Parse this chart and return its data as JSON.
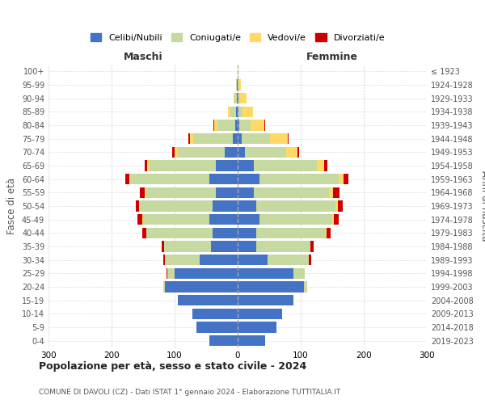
{
  "age_groups": [
    "0-4",
    "5-9",
    "10-14",
    "15-19",
    "20-24",
    "25-29",
    "30-34",
    "35-39",
    "40-44",
    "45-49",
    "50-54",
    "55-59",
    "60-64",
    "65-69",
    "70-74",
    "75-79",
    "80-84",
    "85-89",
    "90-94",
    "95-99",
    "100+"
  ],
  "birth_years": [
    "2019-2023",
    "2014-2018",
    "2009-2013",
    "2004-2008",
    "1999-2003",
    "1994-1998",
    "1989-1993",
    "1984-1988",
    "1979-1983",
    "1974-1978",
    "1969-1973",
    "1964-1968",
    "1959-1963",
    "1954-1958",
    "1949-1953",
    "1944-1948",
    "1939-1943",
    "1934-1938",
    "1929-1933",
    "1924-1928",
    "≤ 1923"
  ],
  "maschi": {
    "celibi": [
      45,
      65,
      72,
      95,
      115,
      100,
      60,
      42,
      40,
      45,
      40,
      35,
      45,
      35,
      20,
      8,
      4,
      2,
      1,
      1,
      0
    ],
    "coniugati": [
      0,
      0,
      0,
      0,
      3,
      12,
      55,
      75,
      105,
      105,
      115,
      110,
      125,
      105,
      75,
      62,
      28,
      10,
      4,
      1,
      0
    ],
    "vedovi": [
      0,
      0,
      0,
      0,
      0,
      0,
      0,
      0,
      0,
      1,
      1,
      2,
      2,
      4,
      5,
      6,
      5,
      4,
      2,
      1,
      0
    ],
    "divorziati": [
      0,
      0,
      0,
      0,
      0,
      1,
      3,
      4,
      6,
      8,
      6,
      8,
      6,
      4,
      4,
      2,
      1,
      0,
      0,
      0,
      0
    ]
  },
  "femmine": {
    "nubili": [
      43,
      62,
      70,
      88,
      105,
      88,
      48,
      30,
      30,
      35,
      30,
      25,
      35,
      25,
      12,
      6,
      2,
      1,
      1,
      0,
      0
    ],
    "coniugate": [
      0,
      0,
      0,
      0,
      5,
      18,
      65,
      85,
      110,
      115,
      125,
      120,
      125,
      100,
      65,
      45,
      18,
      7,
      3,
      1,
      0
    ],
    "vedove": [
      0,
      0,
      0,
      0,
      0,
      0,
      0,
      1,
      1,
      2,
      4,
      6,
      8,
      12,
      18,
      28,
      22,
      16,
      10,
      4,
      1
    ],
    "divorziate": [
      0,
      0,
      0,
      0,
      0,
      1,
      4,
      4,
      6,
      8,
      8,
      10,
      8,
      5,
      3,
      2,
      1,
      0,
      0,
      0,
      0
    ]
  },
  "colors": {
    "celibi": "#4472C4",
    "coniugati": "#c5d9a0",
    "vedovi": "#ffd966",
    "divorziati": "#cc0000"
  },
  "xlim": 300,
  "title": "Popolazione per età, sesso e stato civile - 2024",
  "subtitle": "COMUNE DI DAVOLI (CZ) - Dati ISTAT 1° gennaio 2024 - Elaborazione TUTTITALIA.IT",
  "ylabel": "Fasce di età",
  "ylabel_right": "Anni di nascita",
  "label_maschi": "Maschi",
  "label_femmine": "Femmine",
  "legend_labels": [
    "Celibi/Nubili",
    "Coniugati/e",
    "Vedovi/e",
    "Divorziati/e"
  ]
}
